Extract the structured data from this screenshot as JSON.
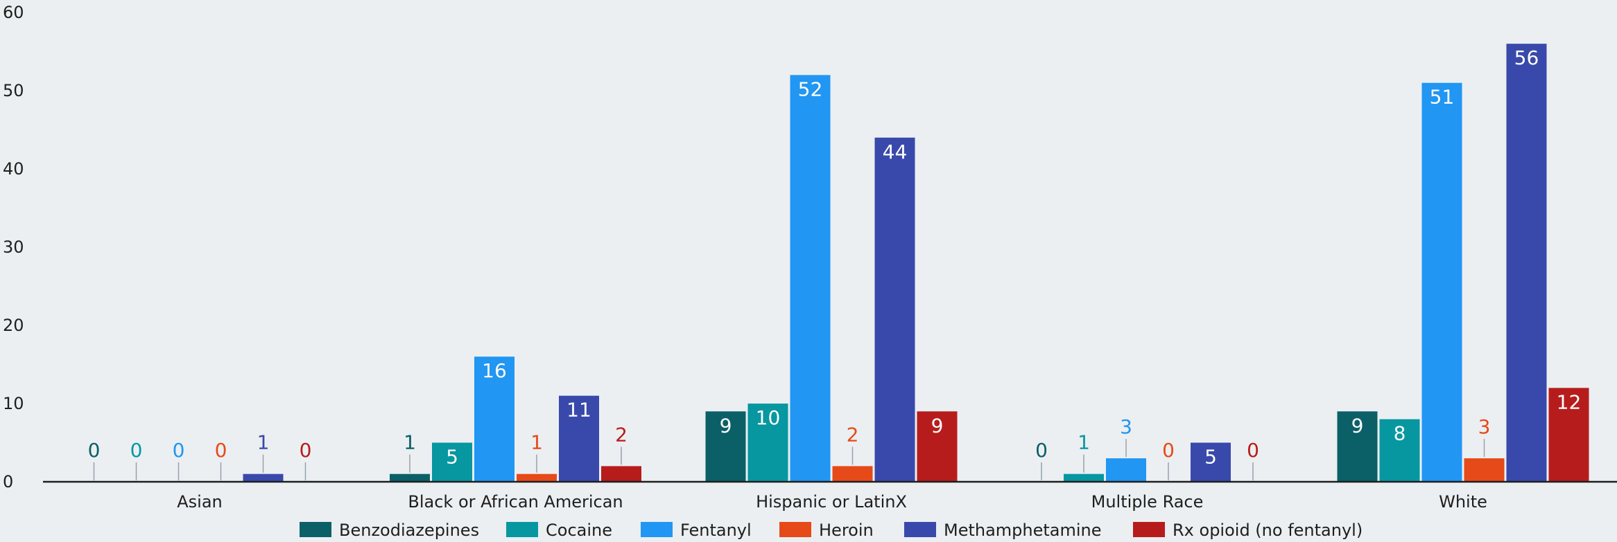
{
  "chart_data": {
    "type": "bar",
    "title": "",
    "xlabel": "",
    "ylabel": "",
    "ylim": [
      0,
      60
    ],
    "yticks": [
      0,
      10,
      20,
      30,
      40,
      50,
      60
    ],
    "grid": false,
    "legend_position": "bottom",
    "categories": [
      "Asian",
      "Black or African American",
      "Hispanic or LatinX",
      "Multiple Race",
      "White"
    ],
    "series": [
      {
        "name": "Benzodiazepines",
        "color": "#0b6068",
        "values": [
          0,
          1,
          9,
          0,
          9
        ]
      },
      {
        "name": "Cocaine",
        "color": "#0697a1",
        "values": [
          0,
          5,
          10,
          1,
          8
        ]
      },
      {
        "name": "Fentanyl",
        "color": "#2196f3",
        "values": [
          0,
          16,
          52,
          3,
          51
        ]
      },
      {
        "name": "Heroin",
        "color": "#e64a19",
        "values": [
          0,
          1,
          2,
          0,
          3
        ]
      },
      {
        "name": "Methamphetamine",
        "color": "#3949ab",
        "values": [
          1,
          11,
          44,
          5,
          56
        ]
      },
      {
        "name": "Rx opioid (no fentanyl)",
        "color": "#b71c1c",
        "values": [
          0,
          2,
          9,
          0,
          12
        ]
      }
    ]
  }
}
